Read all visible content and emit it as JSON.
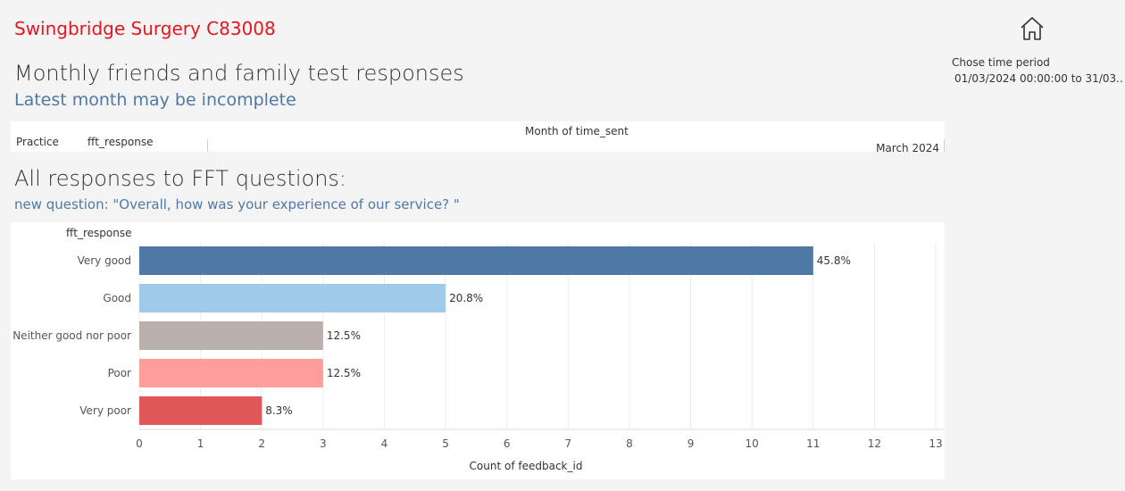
{
  "header": {
    "practice_title": "Swingbridge Surgery C83008",
    "monthly_title": "Monthly friends and family test responses",
    "monthly_subtitle": "Latest month may be incomplete"
  },
  "monthly_table": {
    "col_practice": "Practice",
    "col_fft_response": "fft_response",
    "col_month_header": "Month of time_sent",
    "col_month": "March 2024"
  },
  "fft_section": {
    "title": "All responses to FFT questions:",
    "subtitle": "new question: \"Overall, how was your experience of our service? \""
  },
  "sidebar": {
    "home_icon": "home-icon",
    "period_label": "Chose time period",
    "period_value": "01/03/2024 00:00:00 to 31/03.."
  },
  "chart_data": {
    "type": "bar",
    "orientation": "horizontal",
    "row_header": "fft_response",
    "categories": [
      "Very good",
      "Good",
      "Neither good nor poor",
      "Poor",
      "Very poor"
    ],
    "values": [
      11,
      5,
      3,
      3,
      2
    ],
    "data_labels": [
      "45.8%",
      "20.8%",
      "12.5%",
      "12.5%",
      "8.3%"
    ],
    "colors": [
      "#4e79a7",
      "#a0cbe8",
      "#bab0ac",
      "#ff9d9a",
      "#e15759"
    ],
    "xlabel": "Count of feedback_id",
    "xlim": [
      0,
      13
    ],
    "xticks": [
      0,
      1,
      2,
      3,
      4,
      5,
      6,
      7,
      8,
      9,
      10,
      11,
      12,
      13
    ],
    "grid": "vertical"
  }
}
